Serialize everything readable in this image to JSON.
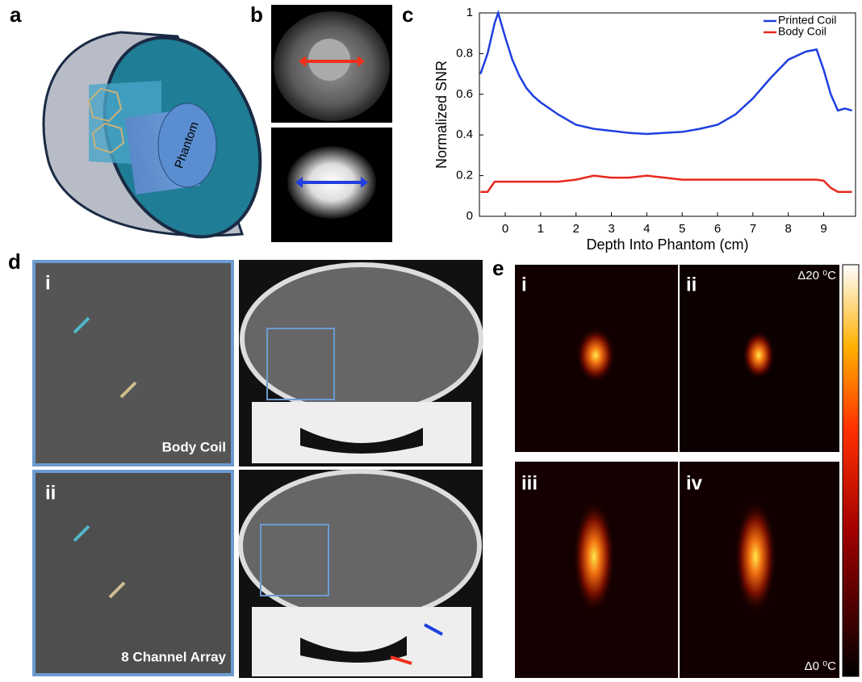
{
  "panel_labels": [
    "a",
    "b",
    "c",
    "d",
    "e"
  ],
  "panel_a": {
    "label": "Phantom"
  },
  "chart_data": {
    "type": "line",
    "xlabel": "Depth Into Phantom (cm)",
    "ylabel": "Normalized SNR",
    "x": [
      -0.7,
      -0.5,
      -0.3,
      -0.2,
      0,
      0.2,
      0.4,
      0.6,
      0.8,
      1,
      1.5,
      2,
      2.5,
      3,
      3.5,
      4,
      4.5,
      5,
      5.5,
      6,
      6.5,
      7,
      7.5,
      8,
      8.5,
      8.8,
      9,
      9.2,
      9.4,
      9.6,
      9.8
    ],
    "series": [
      {
        "name": "Printed Coil",
        "color": "#1f3fe0",
        "values": [
          0.7,
          0.8,
          0.95,
          1.0,
          0.88,
          0.77,
          0.69,
          0.63,
          0.59,
          0.56,
          0.5,
          0.45,
          0.43,
          0.42,
          0.41,
          0.405,
          0.41,
          0.415,
          0.43,
          0.45,
          0.5,
          0.58,
          0.68,
          0.77,
          0.81,
          0.82,
          0.72,
          0.6,
          0.52,
          0.53,
          0.52
        ]
      },
      {
        "name": "Body Coil",
        "color": "#e8281e",
        "values": [
          0.12,
          0.12,
          0.17,
          0.17,
          0.17,
          0.17,
          0.17,
          0.17,
          0.17,
          0.17,
          0.17,
          0.18,
          0.2,
          0.19,
          0.19,
          0.2,
          0.19,
          0.18,
          0.18,
          0.18,
          0.18,
          0.18,
          0.18,
          0.18,
          0.18,
          0.18,
          0.175,
          0.14,
          0.12,
          0.12,
          0.12
        ]
      }
    ],
    "xlim": [
      -0.73,
      9.9
    ],
    "xticks": [
      0,
      1,
      2,
      3,
      4,
      5,
      6,
      7,
      8,
      9
    ],
    "ylim": [
      0,
      1
    ],
    "yticks": [
      0,
      0.2,
      0.4,
      0.6,
      0.8,
      1
    ],
    "legend": "upper right"
  },
  "panel_d": {
    "rows": [
      {
        "numeral": "i",
        "caption": "Body Coil"
      },
      {
        "numeral": "ii",
        "caption": "8 Channel Array"
      }
    ]
  },
  "panel_e": {
    "numerals": [
      "i",
      "ii",
      "iii",
      "iv"
    ],
    "colorbar_max": "Δ20 ⁰C",
    "colorbar_min": "Δ0 ⁰C"
  }
}
